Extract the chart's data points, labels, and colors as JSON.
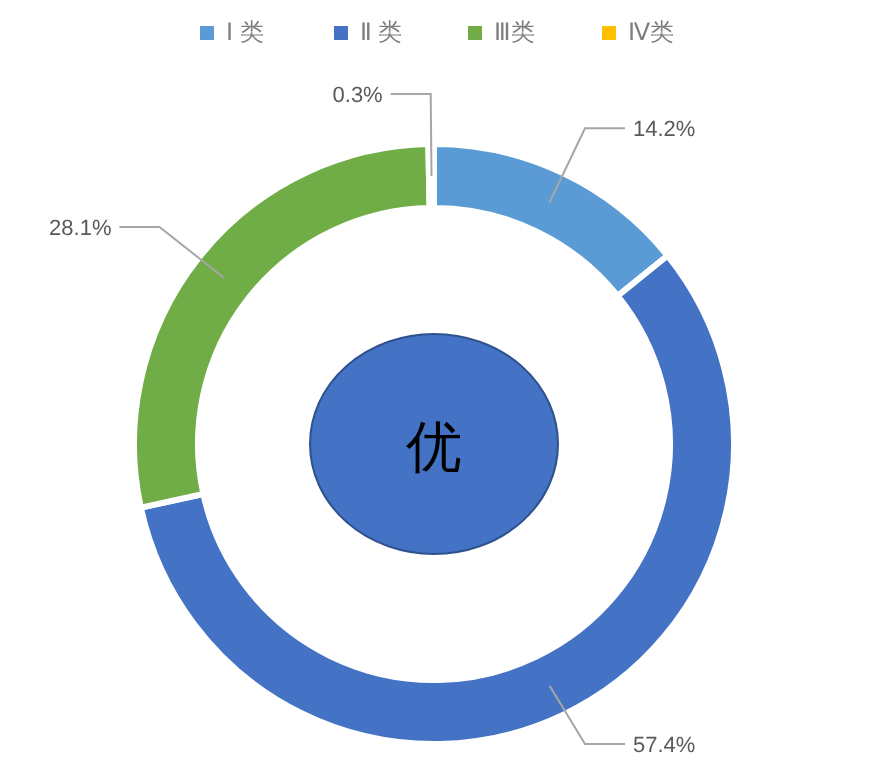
{
  "chart_data": {
    "type": "donut",
    "categories": [
      "Ⅰ 类",
      "Ⅱ 类",
      "Ⅲ类",
      "Ⅳ类"
    ],
    "values": [
      14.2,
      57.4,
      28.1,
      0.3
    ],
    "colors": [
      "#5b9bd5",
      "#4472c4",
      "#70ad47",
      "#ffc000"
    ],
    "value_labels": [
      "14.2%",
      "57.4%",
      "28.1%",
      "0.3%"
    ],
    "legend": "top",
    "annotations": [
      "优"
    ]
  }
}
